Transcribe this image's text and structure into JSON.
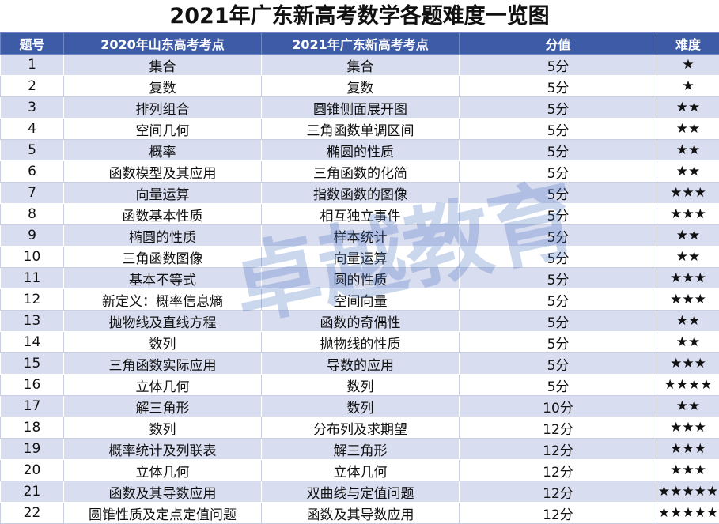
{
  "title": "2021年广东新高考数学各题难度一览图",
  "watermark": "卓越教育",
  "table": {
    "header": [
      "题号",
      "2020年山东高考考点",
      "2021年广东新高考考点",
      "分值",
      "难度"
    ],
    "rows": [
      [
        "1",
        "集合",
        "集合",
        "5分",
        "★"
      ],
      [
        "2",
        "复数",
        "复数",
        "5分",
        "★"
      ],
      [
        "3",
        "排列组合",
        "圆锥侧面展开图",
        "5分",
        "★★"
      ],
      [
        "4",
        "空间几何",
        "三角函数单调区间",
        "5分",
        "★★"
      ],
      [
        "5",
        "概率",
        "椭圆的性质",
        "5分",
        "★★"
      ],
      [
        "6",
        "函数模型及其应用",
        "三角函数的化简",
        "5分",
        "★★"
      ],
      [
        "7",
        "向量运算",
        "指数函数的图像",
        "5分",
        "★★★"
      ],
      [
        "8",
        "函数基本性质",
        "相互独立事件",
        "5分",
        "★★★"
      ],
      [
        "9",
        "椭圆的性质",
        "样本统计",
        "5分",
        "★★"
      ],
      [
        "10",
        "三角函数图像",
        "向量运算",
        "5分",
        "★★"
      ],
      [
        "11",
        "基本不等式",
        "圆的性质",
        "5分",
        "★★★"
      ],
      [
        "12",
        "新定义：概率信息熵",
        "空间向量",
        "5分",
        "★★★"
      ],
      [
        "13",
        "抛物线及直线方程",
        "函数的奇偶性",
        "5分",
        "★★"
      ],
      [
        "14",
        "数列",
        "抛物线的性质",
        "5分",
        "★★"
      ],
      [
        "15",
        "三角函数实际应用",
        "导数的应用",
        "5分",
        "★★★"
      ],
      [
        "16",
        "立体几何",
        "数列",
        "5分",
        "★★★★"
      ],
      [
        "17",
        "解三角形",
        "数列",
        "10分",
        "★★"
      ],
      [
        "18",
        "数列",
        "分布列及求期望",
        "12分",
        "★★★"
      ],
      [
        "19",
        "概率统计及列联表",
        "解三角形",
        "12分",
        "★★★"
      ],
      [
        "20",
        "立体几何",
        "立体几何",
        "12分",
        "★★★"
      ],
      [
        "21",
        "函数及其导数应用",
        "双曲线与定值问题",
        "12分",
        "★★★★★"
      ],
      [
        "22",
        "圆锥性质及定点定值问题",
        "函数及其导数应用",
        "12分",
        "★★★★★"
      ]
    ]
  }
}
